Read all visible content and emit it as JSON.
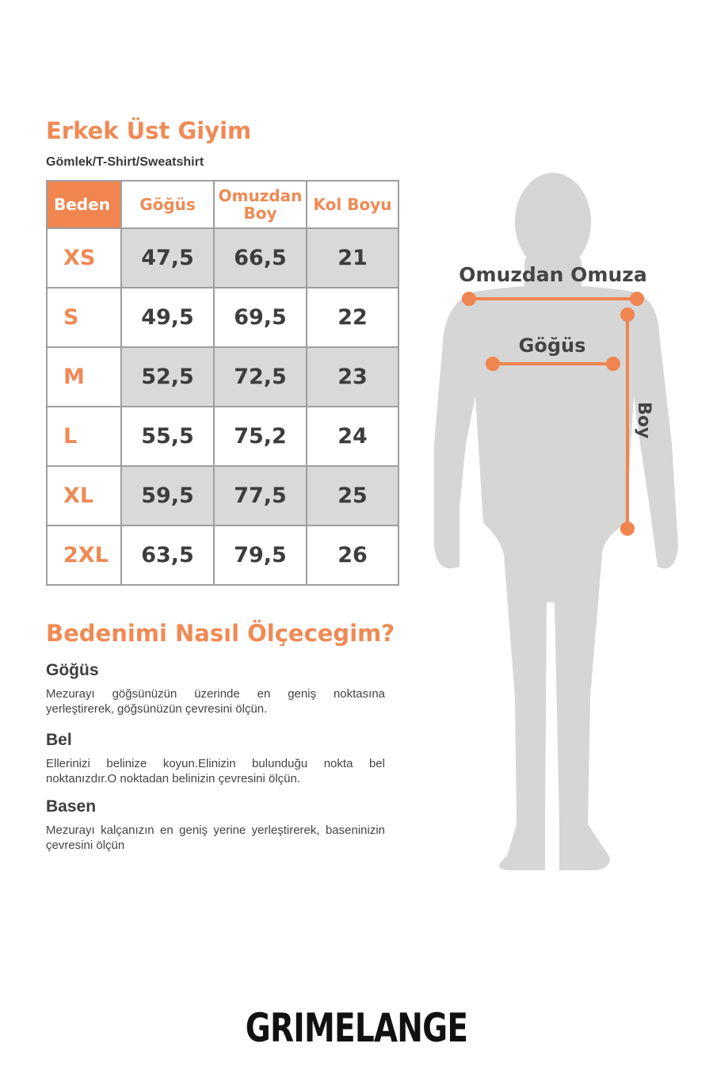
{
  "header": {
    "title": "Erkek Üst Giyim",
    "subtitle": "Gömlek/T-Shirt/Sweatshirt"
  },
  "table": {
    "columns": [
      "Beden",
      "Göğüs",
      "Omuzdan Boy",
      "Kol Boyu"
    ],
    "rows": [
      [
        "XS",
        "47,5",
        "66,5",
        "21"
      ],
      [
        "S",
        "49,5",
        "69,5",
        "22"
      ],
      [
        "M",
        "52,5",
        "72,5",
        "23"
      ],
      [
        "L",
        "55,5",
        "75,2",
        "24"
      ],
      [
        "XL",
        "59,5",
        "77,5",
        "25"
      ],
      [
        "2XL",
        "63,5",
        "79,5",
        "26"
      ]
    ]
  },
  "guide": {
    "title": "Bedenimi Nasıl Ölçecegim?",
    "sections": [
      {
        "heading": "Göğüs",
        "text": "Mezurayı göğsünüzün üzerinde en geniş noktasına yerleştirerek, göğsünüzün çevresini ölçün."
      },
      {
        "heading": "Bel",
        "text": "Ellerinizi belinize koyun.Elinizin bulunduğu nokta bel noktanızdır.O noktadan belinizin çevresini ölçün."
      },
      {
        "heading": "Basen",
        "text": "Mezurayı kalçanızın en geniş yerine yerleştirerek, baseninizin çevresini ölçün"
      }
    ]
  },
  "figure": {
    "labels": {
      "shoulder": "Omuzdan Omuza",
      "chest": "Göğüs",
      "length": "Boy"
    },
    "accent": "#f08550",
    "silhouette": "#d6d6d6"
  },
  "brand": {
    "logo": "GRIMELANGE"
  },
  "colors": {
    "accent": "#ef8a55",
    "gray_cell": "#d9d9d9",
    "text": "#3d3d3d"
  }
}
